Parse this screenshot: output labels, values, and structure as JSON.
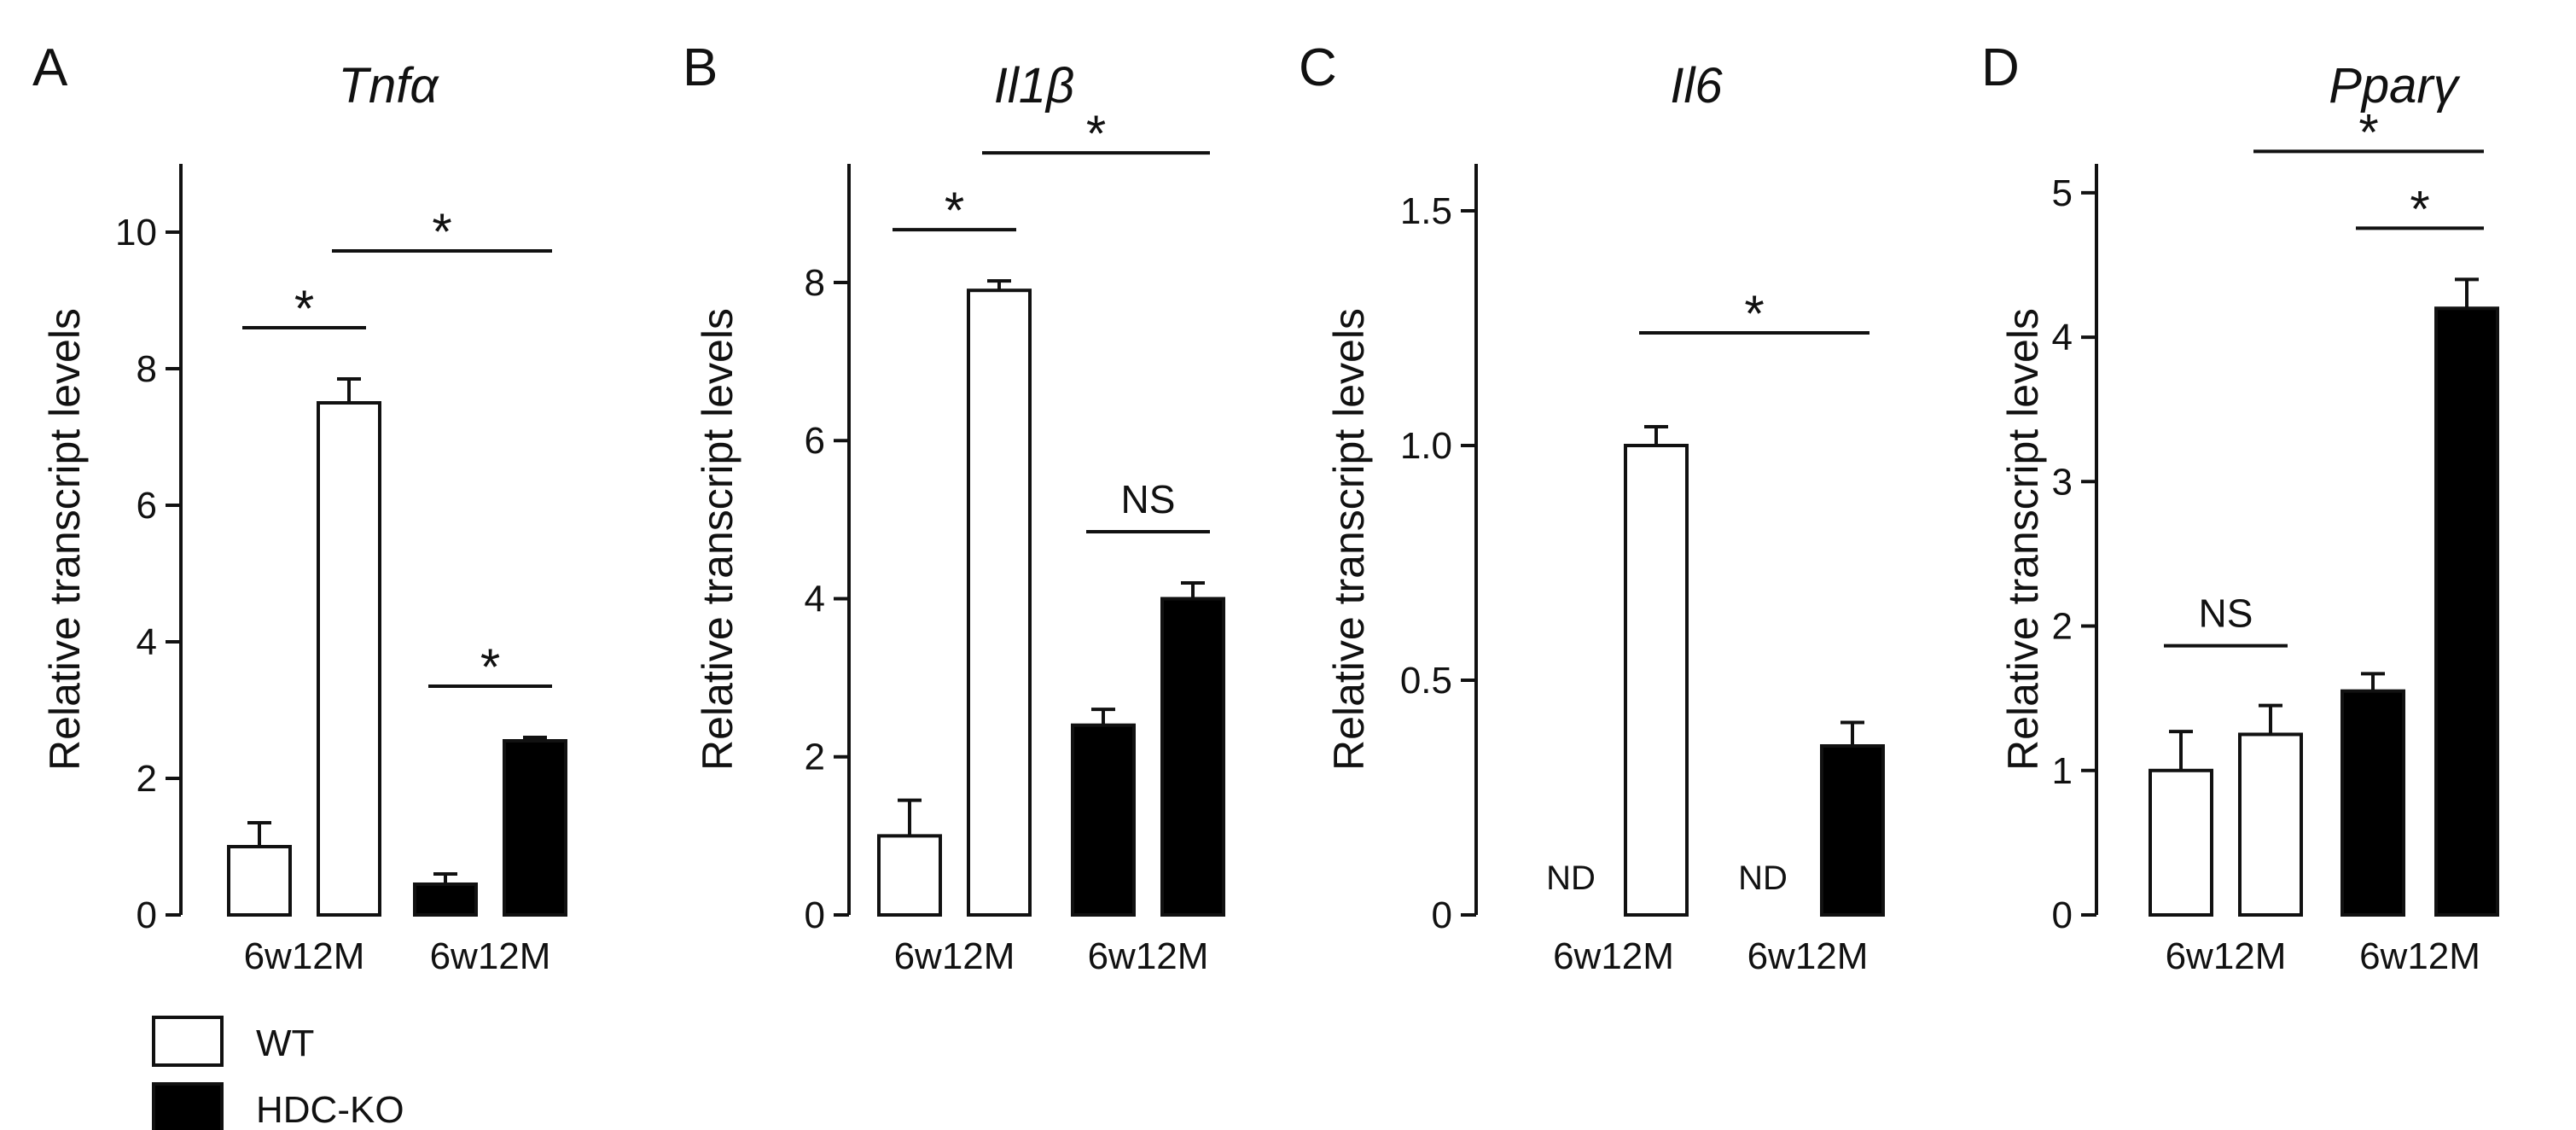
{
  "legend": [
    {
      "label": "WT",
      "color": "#ffffff"
    },
    {
      "label": "HDC-KO",
      "color": "#000000"
    }
  ],
  "chart_data": [
    {
      "type": "bar",
      "panel": "A",
      "title": "Tnfα",
      "ylabel": "Relative transcript levels",
      "ylim": [
        0,
        11
      ],
      "yticks": [
        "0",
        "2",
        "4",
        "6",
        "8",
        "10"
      ],
      "group_labels": [
        "6w12M",
        "6w12M"
      ],
      "series": [
        {
          "name": "WT",
          "categories": [
            "6w",
            "12M"
          ],
          "values": [
            1.0,
            7.5
          ],
          "errors": [
            0.35,
            0.35
          ]
        },
        {
          "name": "HDC-KO",
          "categories": [
            "6w",
            "12M"
          ],
          "values": [
            0.45,
            2.55
          ],
          "errors": [
            0.15,
            0.05
          ]
        }
      ],
      "annotations": [
        {
          "text": "*",
          "from": 0,
          "to": 1
        },
        {
          "text": "*",
          "from": 1,
          "to": 3
        },
        {
          "text": "*",
          "from": 2,
          "to": 3
        }
      ]
    },
    {
      "type": "bar",
      "panel": "B",
      "title": "Il1β",
      "ylabel": "Relative transcript levels",
      "ylim": [
        0,
        9.5
      ],
      "yticks": [
        "0",
        "2",
        "4",
        "6",
        "8"
      ],
      "group_labels": [
        "6w12M",
        "6w12M"
      ],
      "series": [
        {
          "name": "WT",
          "categories": [
            "6w",
            "12M"
          ],
          "values": [
            1.0,
            7.9
          ],
          "errors": [
            0.45,
            0.12
          ]
        },
        {
          "name": "HDC-KO",
          "categories": [
            "6w",
            "12M"
          ],
          "values": [
            2.4,
            4.0
          ],
          "errors": [
            0.2,
            0.2
          ]
        }
      ],
      "annotations": [
        {
          "text": "*",
          "from": 0,
          "to": 1
        },
        {
          "text": "*",
          "from": 1,
          "to": 3
        },
        {
          "text": "NS",
          "from": 2,
          "to": 3
        }
      ]
    },
    {
      "type": "bar",
      "panel": "C",
      "title": "Il6",
      "ylabel": "Relative transcript levels",
      "ylim": [
        0,
        1.6
      ],
      "yticks": [
        "0",
        "0.5",
        "1.0",
        "1.5"
      ],
      "group_labels": [
        "6w12M",
        "6w12M"
      ],
      "series": [
        {
          "name": "WT",
          "categories": [
            "6w",
            "12M"
          ],
          "values": [
            0,
            1.0
          ],
          "errors": [
            0,
            0.04
          ]
        },
        {
          "name": "HDC-KO",
          "categories": [
            "6w",
            "12M"
          ],
          "values": [
            0,
            0.36
          ],
          "errors": [
            0,
            0.05
          ]
        }
      ],
      "not_detected": [
        0,
        2
      ],
      "nd_label": "ND",
      "annotations": [
        {
          "text": "*",
          "from": 1,
          "to": 3
        }
      ]
    },
    {
      "type": "bar",
      "panel": "D",
      "title": "Pparγ",
      "ylabel": "Relative transcript levels",
      "ylim": [
        0,
        5.2
      ],
      "yticks": [
        "0",
        "1",
        "2",
        "3",
        "4",
        "5"
      ],
      "group_labels": [
        "6w12M",
        "6w12M"
      ],
      "series": [
        {
          "name": "WT",
          "categories": [
            "6w",
            "12M"
          ],
          "values": [
            1.0,
            1.25
          ],
          "errors": [
            0.27,
            0.2
          ]
        },
        {
          "name": "HDC-KO",
          "categories": [
            "6w",
            "12M"
          ],
          "values": [
            1.55,
            4.2
          ],
          "errors": [
            0.12,
            0.2
          ]
        }
      ],
      "annotations": [
        {
          "text": "NS",
          "from": 0,
          "to": 1
        },
        {
          "text": "*",
          "from": 1,
          "to": 3
        },
        {
          "text": "*",
          "from": 2,
          "to": 3
        }
      ]
    }
  ]
}
